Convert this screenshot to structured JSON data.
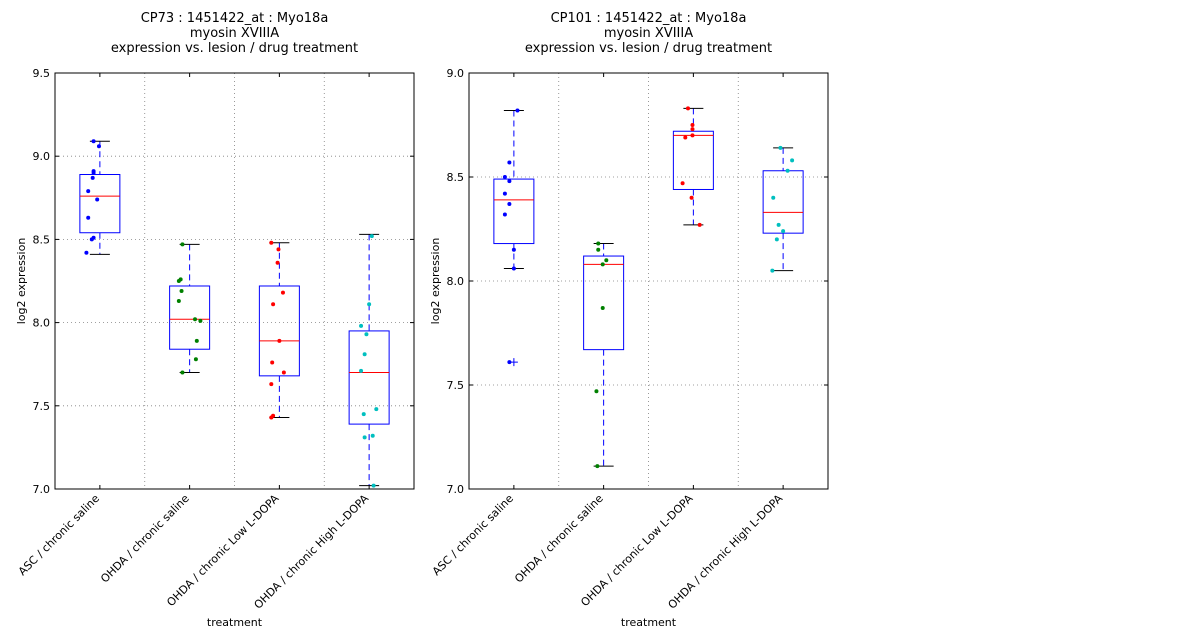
{
  "chart_data": [
    {
      "type": "box",
      "title_lines": [
        "CP73 : 1451422_at : Myo18a",
        "myosin XVIIIA",
        "expression vs. lesion / drug treatment"
      ],
      "xlabel": "treatment",
      "ylabel": "log2 expression",
      "ylim": [
        7.0,
        9.5
      ],
      "yticks": [
        "7.0",
        "7.5",
        "8.0",
        "8.5",
        "9.0",
        "9.5"
      ],
      "grid": true,
      "categories": [
        "ASC / chronic saline",
        "OHDA / chronic saline",
        "OHDA / chronic Low L-DOPA",
        "OHDA / chronic High L-DOPA"
      ],
      "boxes": [
        {
          "whisker_low": 8.41,
          "q1": 8.54,
          "median": 8.76,
          "q3": 8.89,
          "whisker_high": 9.09,
          "outliers": []
        },
        {
          "whisker_low": 7.7,
          "q1": 7.84,
          "median": 8.02,
          "q3": 8.22,
          "whisker_high": 8.47,
          "outliers": []
        },
        {
          "whisker_low": 7.43,
          "q1": 7.68,
          "median": 7.89,
          "q3": 8.22,
          "whisker_high": 8.48,
          "outliers": []
        },
        {
          "whisker_low": 7.02,
          "q1": 7.39,
          "median": 7.7,
          "q3": 7.95,
          "whisker_high": 8.53,
          "outliers": []
        }
      ],
      "points": [
        [
          {
            "x": -0.15,
            "y": 8.42
          },
          {
            "x": -0.09,
            "y": 8.5
          },
          {
            "x": -0.07,
            "y": 8.51
          },
          {
            "x": -0.13,
            "y": 8.63
          },
          {
            "x": -0.03,
            "y": 8.74
          },
          {
            "x": -0.13,
            "y": 8.79
          },
          {
            "x": -0.08,
            "y": 8.87
          },
          {
            "x": -0.07,
            "y": 8.9
          },
          {
            "x": -0.07,
            "y": 8.91
          },
          {
            "x": -0.01,
            "y": 9.06
          },
          {
            "x": -0.07,
            "y": 9.09
          }
        ],
        [
          {
            "x": -0.08,
            "y": 7.7
          },
          {
            "x": 0.07,
            "y": 7.78
          },
          {
            "x": 0.08,
            "y": 7.89
          },
          {
            "x": 0.12,
            "y": 8.01
          },
          {
            "x": 0.06,
            "y": 8.02
          },
          {
            "x": -0.12,
            "y": 8.13
          },
          {
            "x": -0.09,
            "y": 8.19
          },
          {
            "x": -0.12,
            "y": 8.25
          },
          {
            "x": -0.1,
            "y": 8.26
          },
          {
            "x": -0.08,
            "y": 8.47
          }
        ],
        [
          {
            "x": -0.09,
            "y": 7.43
          },
          {
            "x": -0.07,
            "y": 7.44
          },
          {
            "x": -0.09,
            "y": 7.63
          },
          {
            "x": 0.05,
            "y": 7.7
          },
          {
            "x": -0.08,
            "y": 7.76
          },
          {
            "x": 0.0,
            "y": 7.89
          },
          {
            "x": -0.07,
            "y": 8.11
          },
          {
            "x": 0.04,
            "y": 8.18
          },
          {
            "x": -0.02,
            "y": 8.36
          },
          {
            "x": -0.01,
            "y": 8.44
          },
          {
            "x": -0.09,
            "y": 8.48
          }
        ],
        [
          {
            "x": 0.05,
            "y": 7.02
          },
          {
            "x": -0.05,
            "y": 7.31
          },
          {
            "x": 0.04,
            "y": 7.32
          },
          {
            "x": -0.06,
            "y": 7.45
          },
          {
            "x": 0.08,
            "y": 7.48
          },
          {
            "x": -0.09,
            "y": 7.71
          },
          {
            "x": -0.05,
            "y": 7.81
          },
          {
            "x": -0.03,
            "y": 7.93
          },
          {
            "x": -0.09,
            "y": 7.98
          },
          {
            "x": 0.0,
            "y": 8.11
          },
          {
            "x": 0.03,
            "y": 8.52
          }
        ]
      ]
    },
    {
      "type": "box",
      "title_lines": [
        "CP101 : 1451422_at : Myo18a",
        "myosin XVIIIA",
        "expression vs. lesion / drug treatment"
      ],
      "xlabel": "treatment",
      "ylabel": "log2 expression",
      "ylim": [
        7.0,
        9.0
      ],
      "yticks": [
        "7.0",
        "7.5",
        "8.0",
        "8.5",
        "9.0"
      ],
      "grid": true,
      "categories": [
        "ASC / chronic saline",
        "OHDA / chronic saline",
        "OHDA / chronic Low L-DOPA",
        "OHDA / chronic High L-DOPA"
      ],
      "boxes": [
        {
          "whisker_low": 8.06,
          "q1": 8.18,
          "median": 8.39,
          "q3": 8.49,
          "whisker_high": 8.82,
          "outliers": [
            7.61
          ]
        },
        {
          "whisker_low": 7.11,
          "q1": 7.67,
          "median": 8.08,
          "q3": 8.12,
          "whisker_high": 8.18,
          "outliers": []
        },
        {
          "whisker_low": 8.27,
          "q1": 8.44,
          "median": 8.7,
          "q3": 8.72,
          "whisker_high": 8.83,
          "outliers": []
        },
        {
          "whisker_low": 8.05,
          "q1": 8.23,
          "median": 8.33,
          "q3": 8.53,
          "whisker_high": 8.64,
          "outliers": []
        }
      ],
      "points": [
        [
          {
            "x": -0.05,
            "y": 7.61
          },
          {
            "x": 0.0,
            "y": 8.06
          },
          {
            "x": 0.0,
            "y": 8.15
          },
          {
            "x": -0.1,
            "y": 8.32
          },
          {
            "x": -0.05,
            "y": 8.37
          },
          {
            "x": -0.1,
            "y": 8.42
          },
          {
            "x": -0.05,
            "y": 8.48
          },
          {
            "x": -0.1,
            "y": 8.5
          },
          {
            "x": -0.05,
            "y": 8.57
          },
          {
            "x": 0.04,
            "y": 8.82
          }
        ],
        [
          {
            "x": -0.07,
            "y": 7.11
          },
          {
            "x": -0.08,
            "y": 7.47
          },
          {
            "x": -0.01,
            "y": 7.87
          },
          {
            "x": -0.01,
            "y": 8.08
          },
          {
            "x": 0.03,
            "y": 8.1
          },
          {
            "x": -0.06,
            "y": 8.15
          },
          {
            "x": -0.06,
            "y": 8.18
          }
        ],
        [
          {
            "x": 0.07,
            "y": 8.27
          },
          {
            "x": -0.02,
            "y": 8.4
          },
          {
            "x": -0.12,
            "y": 8.47
          },
          {
            "x": -0.09,
            "y": 8.69
          },
          {
            "x": -0.01,
            "y": 8.7
          },
          {
            "x": -0.01,
            "y": 8.73
          },
          {
            "x": -0.01,
            "y": 8.75
          },
          {
            "x": -0.06,
            "y": 8.83
          }
        ],
        [
          {
            "x": -0.12,
            "y": 8.05
          },
          {
            "x": -0.07,
            "y": 8.2
          },
          {
            "x": 0.0,
            "y": 8.24
          },
          {
            "x": -0.05,
            "y": 8.27
          },
          {
            "x": -0.11,
            "y": 8.4
          },
          {
            "x": 0.05,
            "y": 8.53
          },
          {
            "x": 0.1,
            "y": 8.58
          },
          {
            "x": -0.03,
            "y": 8.64
          }
        ]
      ]
    }
  ],
  "colors": {
    "box": "#0000ff",
    "median": "#ff0000",
    "whisker": "#000080",
    "grid": "#808080",
    "series": [
      "#0000ff",
      "#008000",
      "#ff0000",
      "#00bfbf"
    ]
  }
}
